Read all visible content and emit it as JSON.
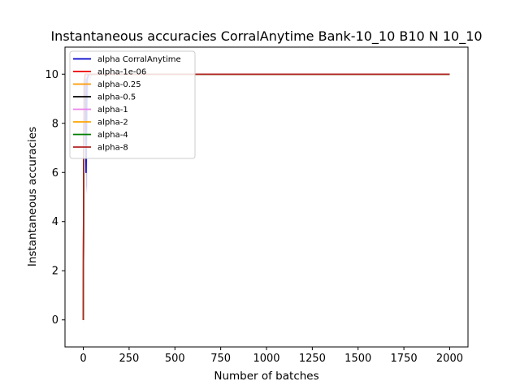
{
  "chart_data": {
    "type": "line",
    "title": "Instantaneous accuracies CorralAnytime Bank-10_10 B10 N 10_10",
    "xlabel": "Number of batches",
    "ylabel": "Instantaneous accuracies",
    "xlim": [
      -100,
      2100
    ],
    "ylim": [
      -1.1,
      11.1
    ],
    "xticks": [
      0,
      250,
      500,
      750,
      1000,
      1250,
      1500,
      1750,
      2000
    ],
    "yticks": [
      0,
      2,
      4,
      6,
      8,
      10
    ],
    "grid": false,
    "legend_position": "top-left",
    "series": [
      {
        "name": "alpha CorralAnytime",
        "color": "#0000cc",
        "x": [
          0,
          2,
          5,
          10,
          15,
          20,
          30,
          60,
          2000
        ],
        "y": [
          0,
          6.5,
          8.0,
          9.8,
          6.0,
          9.8,
          10,
          10,
          10
        ],
        "band": {
          "color": "#6a5acd",
          "x": [
            0,
            2,
            5,
            10,
            15,
            20,
            25,
            30,
            45,
            60
          ],
          "lower": [
            -0.3,
            4.5,
            6.8,
            8.5,
            5.5,
            5.1,
            8.8,
            9.5,
            9.9,
            10
          ],
          "upper": [
            0.3,
            8.0,
            9.5,
            10.0,
            10.0,
            10.0,
            10.0,
            10.0,
            10.0,
            10
          ]
        }
      },
      {
        "name": "alpha-1e-06",
        "color": "#ee0000",
        "x": [
          0,
          2,
          5,
          10,
          2000
        ],
        "y": [
          0,
          7.0,
          9.6,
          10,
          10
        ]
      },
      {
        "name": "alpha-0.25",
        "color": "#ff9900",
        "x": [
          0,
          2,
          5,
          10,
          2000
        ],
        "y": [
          0,
          6.8,
          9.5,
          10,
          10
        ],
        "band": {
          "color": "#ffb347",
          "x": [
            0,
            2,
            5
          ],
          "lower": [
            -0.6,
            5.5,
            9.0
          ],
          "upper": [
            0.3,
            8.0,
            10
          ]
        }
      },
      {
        "name": "alpha-0.5",
        "color": "#000000",
        "x": [
          0,
          2,
          5,
          10,
          2000
        ],
        "y": [
          0,
          7.2,
          9.7,
          10,
          10
        ]
      },
      {
        "name": "alpha-1",
        "color": "#ee82ee",
        "x": [
          0,
          2,
          5,
          10,
          2000
        ],
        "y": [
          0,
          7.0,
          9.6,
          10,
          10
        ]
      },
      {
        "name": "alpha-2",
        "color": "#ffa500",
        "x": [
          0,
          2,
          5,
          10,
          2000
        ],
        "y": [
          0,
          6.9,
          9.6,
          10,
          10
        ]
      },
      {
        "name": "alpha-4",
        "color": "#008000",
        "x": [
          0,
          2,
          5,
          10,
          2000
        ],
        "y": [
          0,
          7.1,
          9.7,
          10,
          10
        ]
      },
      {
        "name": "alpha-8",
        "color": "#b22222",
        "x": [
          0,
          2,
          5,
          10,
          2000
        ],
        "y": [
          0,
          7.0,
          9.6,
          10,
          10
        ]
      }
    ]
  }
}
